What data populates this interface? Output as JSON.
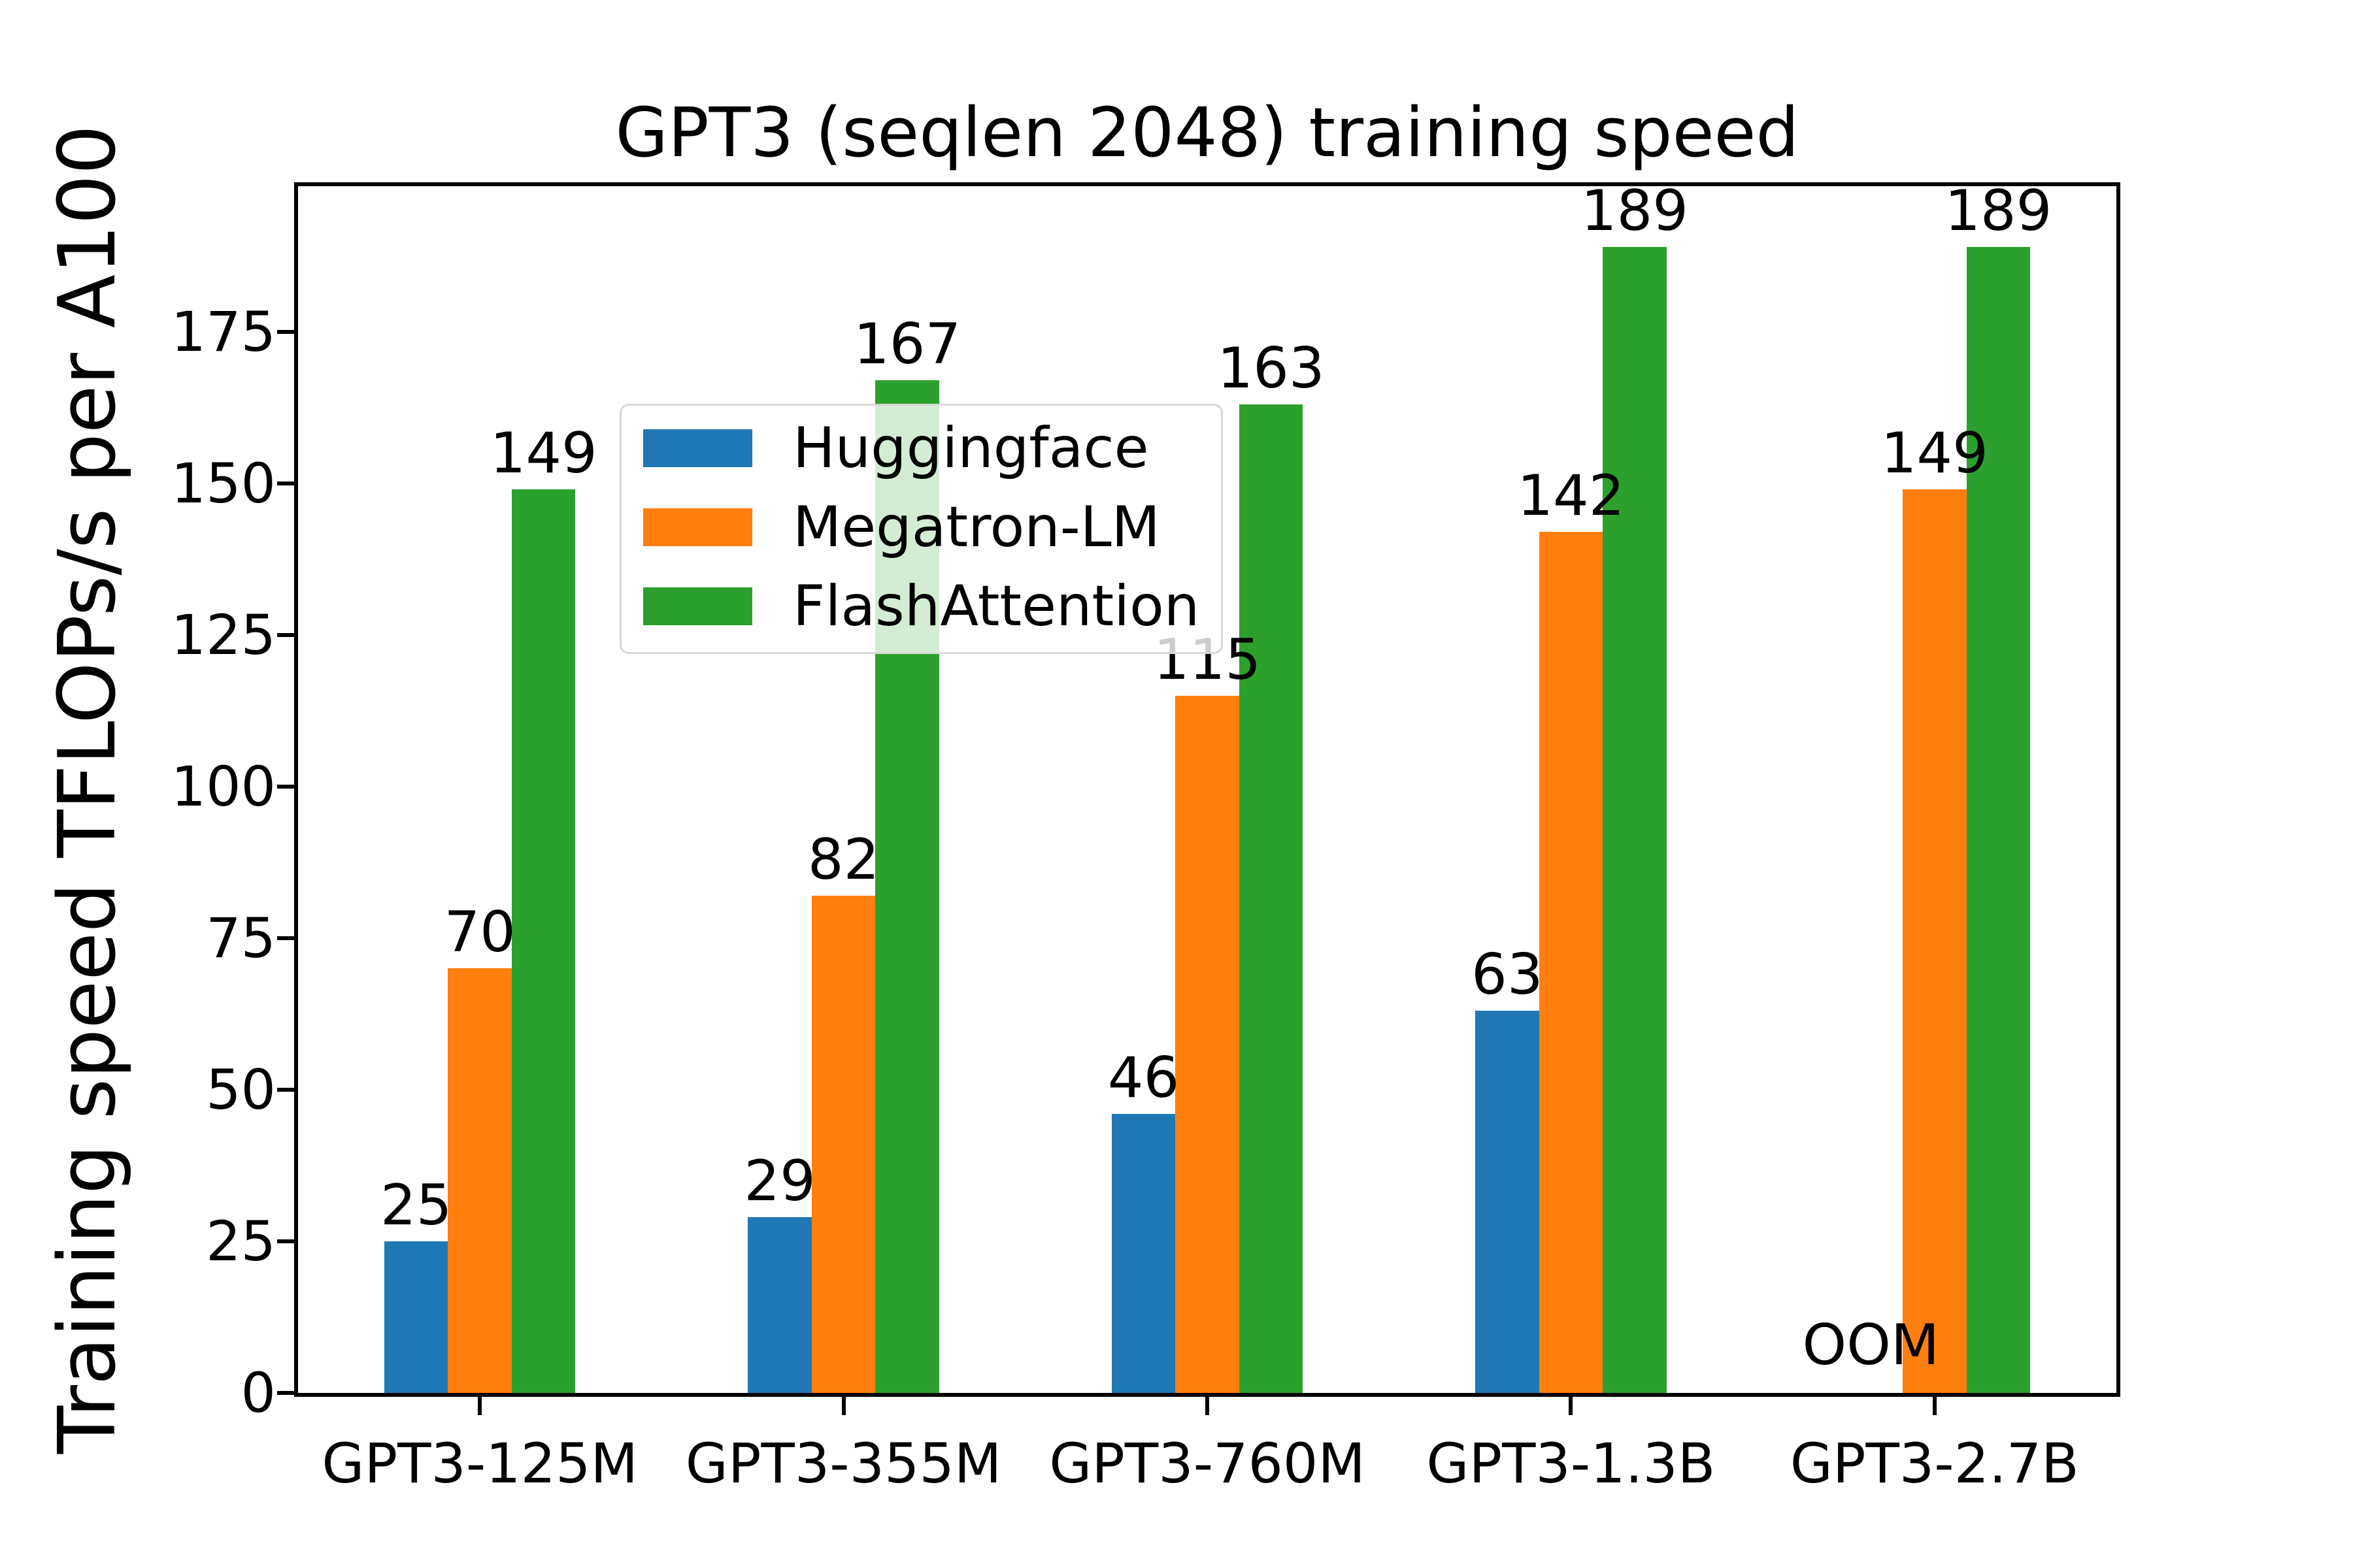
{
  "chart_data": {
    "type": "bar",
    "title": "GPT3 (seqlen 2048) training speed",
    "ylabel": "Training speed TFLOPs/s per A100",
    "xlabel": "",
    "categories": [
      "GPT3-125M",
      "GPT3-355M",
      "GPT3-760M",
      "GPT3-1.3B",
      "GPT3-2.7B"
    ],
    "series": [
      {
        "name": "Huggingface",
        "color": "#1f77b4",
        "values": [
          25,
          29,
          46,
          63,
          null
        ],
        "labels": [
          "25",
          "29",
          "46",
          "63",
          "OOM"
        ]
      },
      {
        "name": "Megatron-LM",
        "color": "#ff7f0e",
        "values": [
          70,
          82,
          115,
          142,
          149
        ],
        "labels": [
          "70",
          "82",
          "115",
          "142",
          "149"
        ]
      },
      {
        "name": "FlashAttention",
        "color": "#2ca02c",
        "values": [
          149,
          167,
          163,
          189,
          189
        ],
        "labels": [
          "149",
          "167",
          "163",
          "189",
          "189"
        ]
      }
    ],
    "yticks": [
      0,
      25,
      50,
      75,
      100,
      125,
      150,
      175
    ],
    "ylim": [
      0,
      199
    ],
    "grid": false,
    "legend_position": "upper left",
    "missing_value_label": "OOM",
    "axis_color": "#000000",
    "background_color": "#ffffff",
    "legend_border_color": "#d8d8d8"
  }
}
